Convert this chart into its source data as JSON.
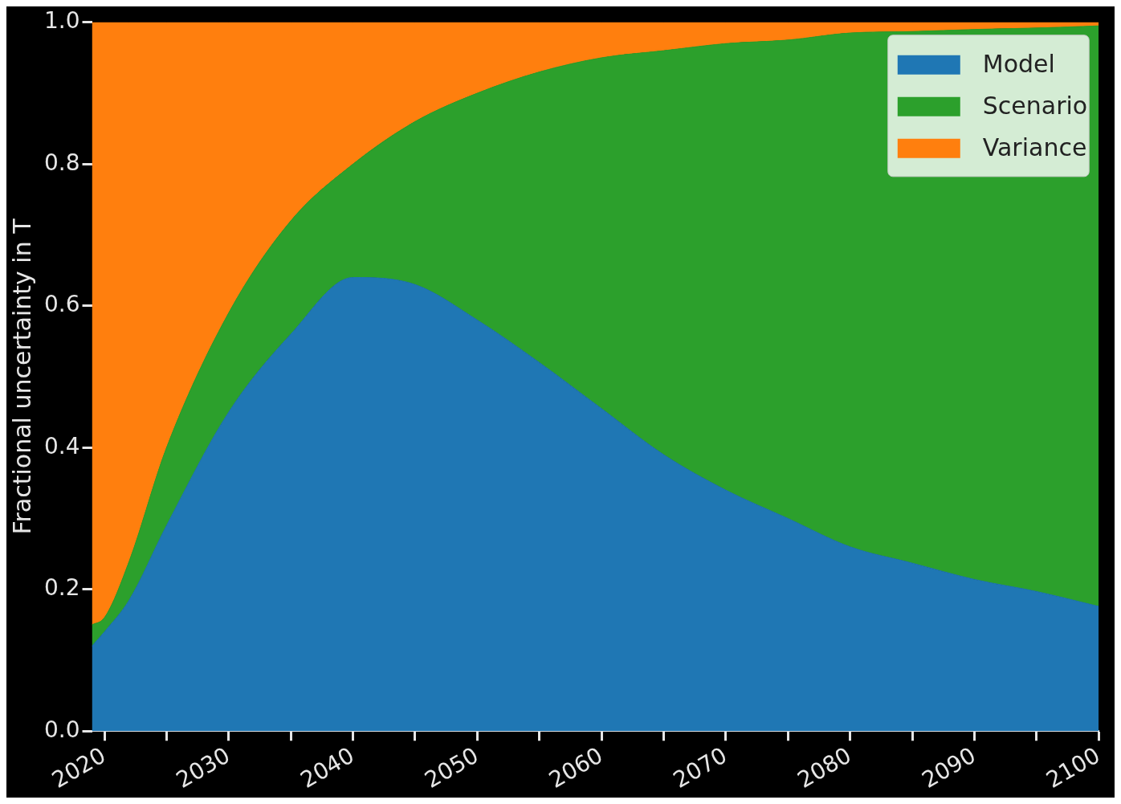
{
  "chart_data": {
    "type": "area",
    "stacked": true,
    "ylabel": "Fractional uncertainty in T",
    "legend": "top right",
    "x": [
      2019,
      2020,
      2022,
      2025,
      2030,
      2035,
      2040,
      2045,
      2050,
      2055,
      2060,
      2065,
      2070,
      2075,
      2080,
      2085,
      2090,
      2095,
      2100
    ],
    "xlim": [
      2019,
      2100
    ],
    "xticks": [
      2020,
      {
        "value": 2025,
        "label": null
      },
      2030,
      {
        "value": 2035,
        "label": null
      },
      2040,
      {
        "value": 2045,
        "label": null
      },
      2050,
      {
        "value": 2055,
        "label": null
      },
      2060,
      {
        "value": 2065,
        "label": null
      },
      2070,
      {
        "value": 2075,
        "label": null
      },
      2080,
      {
        "value": 2085,
        "label": null
      },
      2090,
      {
        "value": 2095,
        "label": null
      },
      2100
    ],
    "ylim": [
      0,
      1
    ],
    "yticks": [
      {
        "value": 0,
        "label": "0.0"
      },
      0.2,
      0.4,
      0.6,
      0.8,
      {
        "value": 1,
        "label": "1.0"
      }
    ],
    "series": [
      {
        "name": "Model",
        "color": "#1f77b4",
        "values": [
          0.12,
          0.14,
          0.185,
          0.29,
          0.45,
          0.56,
          0.64,
          0.63,
          0.58,
          0.52,
          0.455,
          0.39,
          0.34,
          0.3,
          0.26,
          0.237,
          0.214,
          0.197,
          0.176
        ]
      },
      {
        "name": "Scenario",
        "color": "#2ca02c",
        "values": [
          0.03,
          0.02,
          0.055,
          0.11,
          0.14,
          0.16,
          0.16,
          0.23,
          0.32,
          0.41,
          0.495,
          0.57,
          0.63,
          0.675,
          0.725,
          0.75,
          0.776,
          0.795,
          0.819
        ]
      },
      {
        "name": "Variance",
        "color": "#ff7f0e",
        "values": [
          0.85,
          0.84,
          0.76,
          0.6,
          0.41,
          0.28,
          0.2,
          0.14,
          0.1,
          0.07,
          0.05,
          0.04,
          0.03,
          0.025,
          0.015,
          0.013,
          0.01,
          0.008,
          0.005
        ]
      }
    ]
  }
}
